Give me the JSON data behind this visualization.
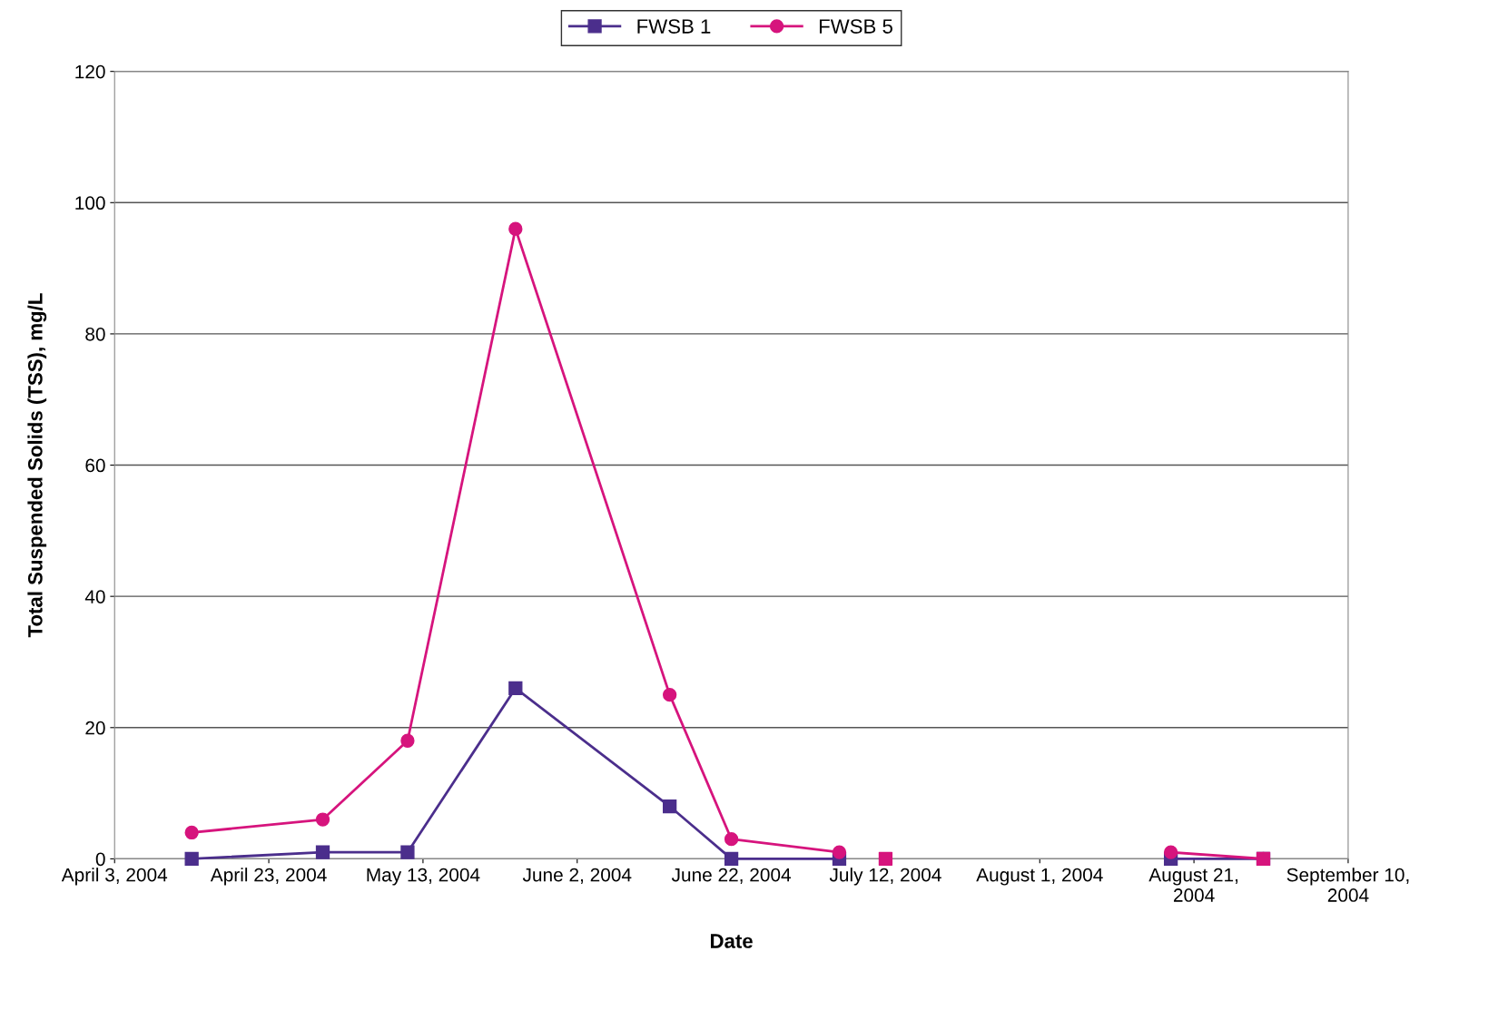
{
  "chart_data": {
    "type": "line",
    "xlabel": "Date",
    "ylabel": "Total Suspended Solids (TSS), mg/L",
    "x": [
      "2004-04-13",
      "2004-04-30",
      "2004-05-11",
      "2004-05-25",
      "2004-06-14",
      "2004-06-22",
      "2004-07-06",
      "2004-07-12",
      "2004-08-18",
      "2004-08-30"
    ],
    "series": [
      {
        "name": "FWSB 1",
        "color": "#4b2e8c",
        "marker": "square",
        "values": [
          0,
          1,
          1,
          26,
          8,
          0,
          0,
          null,
          0,
          0
        ]
      },
      {
        "name": "FWSB 5",
        "color": "#d6147d",
        "marker": "circle",
        "values": [
          4,
          6,
          18,
          96,
          25,
          3,
          1,
          null,
          1,
          0
        ]
      },
      {
        "type": "scatter",
        "color": "#d6147d",
        "marker": "square",
        "values": [
          null,
          null,
          null,
          null,
          null,
          null,
          null,
          0,
          null,
          0
        ]
      }
    ],
    "xlim": [
      "2004-04-03",
      "2004-09-10"
    ],
    "xticks": [
      {
        "value": "2004-04-03",
        "label": "April 3, 2004"
      },
      {
        "value": "2004-04-23",
        "label": "April 23, 2004"
      },
      {
        "value": "2004-05-13",
        "label": "May 13, 2004"
      },
      {
        "value": "2004-06-02",
        "label": "June 2, 2004"
      },
      {
        "value": "2004-06-22",
        "label": "June 22, 2004"
      },
      {
        "value": "2004-07-12",
        "label": "July 12, 2004"
      },
      {
        "value": "2004-08-01",
        "label": "August 1, 2004"
      },
      {
        "value": "2004-08-21",
        "label": "August 21,\n2004"
      },
      {
        "value": "2004-09-10",
        "label": "September 10,\n2004"
      }
    ],
    "ylim": [
      0,
      120
    ],
    "yticks": [
      0,
      20,
      40,
      60,
      80,
      100,
      120
    ],
    "grid": "y",
    "legend": "top",
    "line_style": "solid"
  }
}
